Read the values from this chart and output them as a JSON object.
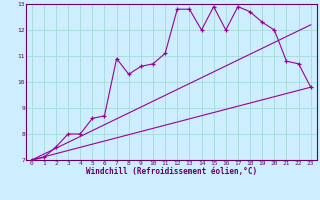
{
  "xlabel": "Windchill (Refroidissement éolien,°C)",
  "bg_color": "#cceeff",
  "line_color": "#990099",
  "grid_color": "#aadddd",
  "xlim": [
    -0.5,
    23.5
  ],
  "ylim": [
    7,
    13
  ],
  "xticks": [
    0,
    1,
    2,
    3,
    4,
    5,
    6,
    7,
    8,
    9,
    10,
    11,
    12,
    13,
    14,
    15,
    16,
    17,
    18,
    19,
    20,
    21,
    22,
    23
  ],
  "yticks": [
    7,
    8,
    9,
    10,
    11,
    12,
    13
  ],
  "series1_x": [
    0,
    1,
    2,
    3,
    4,
    5,
    6,
    7,
    8,
    9,
    10,
    11,
    12,
    13,
    14,
    15,
    16,
    17,
    18,
    19,
    20,
    21,
    22,
    23
  ],
  "series1_y": [
    7.0,
    7.1,
    7.5,
    8.0,
    8.0,
    8.6,
    8.7,
    10.9,
    10.3,
    10.6,
    10.7,
    11.1,
    12.8,
    12.8,
    12.0,
    12.9,
    12.0,
    12.9,
    12.7,
    12.3,
    12.0,
    10.8,
    10.7,
    9.8
  ],
  "series2_x": [
    0,
    23
  ],
  "series2_y": [
    7.0,
    12.2
  ],
  "series3_x": [
    0,
    23
  ],
  "series3_y": [
    7.0,
    9.8
  ]
}
